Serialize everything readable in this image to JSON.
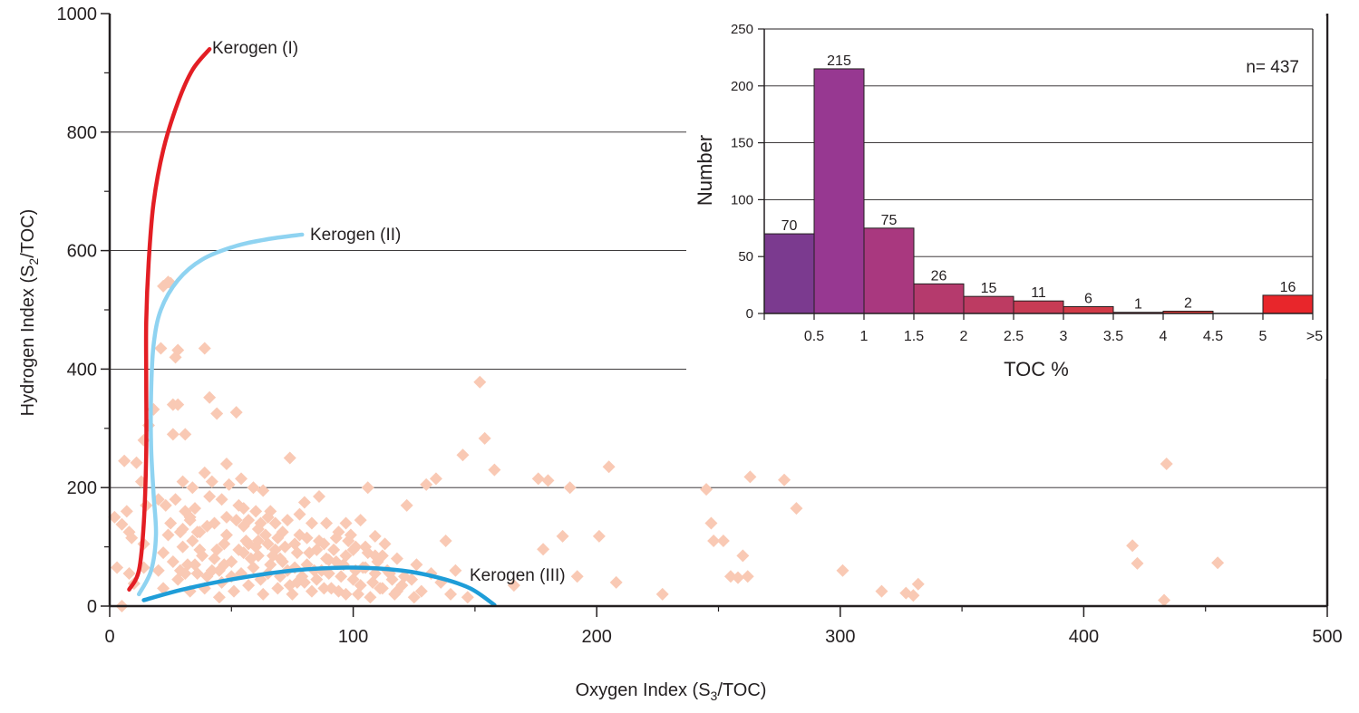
{
  "chart_data": [
    {
      "type": "scatter",
      "xlabel_main": "Oxygen Index (S",
      "xlabel_sub": "3",
      "xlabel_end": "/TOC)",
      "ylabel_main": "Hydrogen Index (S",
      "ylabel_sub": "2",
      "ylabel_end": "/TOC)",
      "xlim": [
        0,
        500
      ],
      "ylim": [
        0,
        1000
      ],
      "x_ticks": [
        "0",
        "100",
        "200",
        "300",
        "400",
        "500"
      ],
      "y_ticks": [
        "0",
        "200",
        "400",
        "600",
        "800",
        "1000"
      ],
      "grid": "horizontal",
      "point_color": "#f9c9b4",
      "curves": [
        {
          "label": "Kerogen (I)",
          "color": "#e31e24",
          "points": [
            [
              8,
              28
            ],
            [
              12,
              60
            ],
            [
              14,
              140
            ],
            [
              15,
              260
            ],
            [
              15,
              380
            ],
            [
              15,
              480
            ],
            [
              16,
              580
            ],
            [
              18,
              680
            ],
            [
              22,
              770
            ],
            [
              28,
              850
            ],
            [
              34,
              905
            ],
            [
              41,
              940
            ]
          ]
        },
        {
          "label": "Kerogen (II)",
          "color": "#8fd3f1",
          "points": [
            [
              12,
              20
            ],
            [
              17,
              60
            ],
            [
              19,
              120
            ],
            [
              18,
              190
            ],
            [
              17,
              270
            ],
            [
              17,
              360
            ],
            [
              18,
              440
            ],
            [
              21,
              500
            ],
            [
              28,
              550
            ],
            [
              38,
              585
            ],
            [
              52,
              608
            ],
            [
              66,
              620
            ],
            [
              79,
              627
            ]
          ]
        },
        {
          "label": "Kerogen (III)",
          "color": "#1e9dd8",
          "points": [
            [
              14,
              10
            ],
            [
              30,
              28
            ],
            [
              50,
              45
            ],
            [
              75,
              60
            ],
            [
              100,
              65
            ],
            [
              120,
              60
            ],
            [
              135,
              48
            ],
            [
              148,
              30
            ],
            [
              158,
              2
            ]
          ]
        }
      ],
      "points": [
        [
          2,
          150
        ],
        [
          3,
          65
        ],
        [
          5,
          0
        ],
        [
          5,
          138
        ],
        [
          6,
          245
        ],
        [
          7,
          160
        ],
        [
          8,
          125
        ],
        [
          9,
          115
        ],
        [
          8,
          55
        ],
        [
          10,
          38
        ],
        [
          11,
          242
        ],
        [
          13,
          210
        ],
        [
          15,
          170
        ],
        [
          14,
          105
        ],
        [
          14,
          65
        ],
        [
          14,
          280
        ],
        [
          16,
          305
        ],
        [
          18,
          332
        ],
        [
          20,
          180
        ],
        [
          21,
          435
        ],
        [
          22,
          540
        ],
        [
          24,
          547
        ],
        [
          25,
          545
        ],
        [
          27,
          420
        ],
        [
          28,
          432
        ],
        [
          28,
          340
        ],
        [
          26,
          340
        ],
        [
          26,
          290
        ],
        [
          31,
          290
        ],
        [
          31,
          160
        ],
        [
          30,
          210
        ],
        [
          33,
          145
        ],
        [
          34,
          200
        ],
        [
          36,
          125
        ],
        [
          39,
          225
        ],
        [
          39,
          435
        ],
        [
          41,
          352
        ],
        [
          42,
          210
        ],
        [
          44,
          325
        ],
        [
          46,
          180
        ],
        [
          48,
          240
        ],
        [
          48,
          150
        ],
        [
          52,
          327
        ],
        [
          54,
          215
        ],
        [
          55,
          165
        ],
        [
          57,
          105
        ],
        [
          59,
          200
        ],
        [
          61,
          130
        ],
        [
          63,
          195
        ],
        [
          66,
          160
        ],
        [
          68,
          95
        ],
        [
          71,
          75
        ],
        [
          74,
          250
        ],
        [
          76,
          105
        ],
        [
          78,
          155
        ],
        [
          80,
          175
        ],
        [
          83,
          140
        ],
        [
          86,
          185
        ],
        [
          88,
          105
        ],
        [
          90,
          78
        ],
        [
          94,
          125
        ],
        [
          97,
          140
        ],
        [
          100,
          95
        ],
        [
          103,
          145
        ],
        [
          106,
          200
        ],
        [
          109,
          118
        ],
        [
          112,
          85
        ],
        [
          115,
          55
        ],
        [
          118,
          25
        ],
        [
          122,
          170
        ],
        [
          126,
          70
        ],
        [
          130,
          205
        ],
        [
          134,
          215
        ],
        [
          138,
          110
        ],
        [
          142,
          60
        ],
        [
          145,
          255
        ],
        [
          147,
          15
        ],
        [
          152,
          378
        ],
        [
          154,
          283
        ],
        [
          158,
          230
        ],
        [
          166,
          35
        ],
        [
          176,
          215
        ],
        [
          178,
          96
        ],
        [
          180,
          212
        ],
        [
          186,
          118
        ],
        [
          189,
          200
        ],
        [
          192,
          50
        ],
        [
          201,
          118
        ],
        [
          205,
          235
        ],
        [
          208,
          40
        ],
        [
          227,
          20
        ],
        [
          245,
          197
        ],
        [
          247,
          140
        ],
        [
          248,
          110
        ],
        [
          252,
          110
        ],
        [
          255,
          50
        ],
        [
          258,
          48
        ],
        [
          260,
          85
        ],
        [
          262,
          50
        ],
        [
          263,
          218
        ],
        [
          277,
          213
        ],
        [
          282,
          165
        ],
        [
          301,
          60
        ],
        [
          317,
          25
        ],
        [
          327,
          22
        ],
        [
          330,
          18
        ],
        [
          332,
          37
        ],
        [
          420,
          102
        ],
        [
          422,
          72
        ],
        [
          433,
          10
        ],
        [
          434,
          240
        ],
        [
          455,
          73
        ],
        [
          20,
          60
        ],
        [
          22,
          90
        ],
        [
          24,
          120
        ],
        [
          26,
          75
        ],
        [
          28,
          45
        ],
        [
          30,
          100
        ],
        [
          32,
          70
        ],
        [
          34,
          110
        ],
        [
          36,
          55
        ],
        [
          38,
          85
        ],
        [
          40,
          135
        ],
        [
          42,
          60
        ],
        [
          44,
          95
        ],
        [
          46,
          40
        ],
        [
          48,
          120
        ],
        [
          50,
          75
        ],
        [
          52,
          145
        ],
        [
          54,
          55
        ],
        [
          56,
          110
        ],
        [
          58,
          80
        ],
        [
          60,
          160
        ],
        [
          62,
          45
        ],
        [
          64,
          120
        ],
        [
          66,
          70
        ],
        [
          68,
          140
        ],
        [
          70,
          50
        ],
        [
          72,
          100
        ],
        [
          74,
          35
        ],
        [
          76,
          65
        ],
        [
          78,
          120
        ],
        [
          80,
          40
        ],
        [
          82,
          90
        ],
        [
          84,
          60
        ],
        [
          86,
          110
        ],
        [
          88,
          30
        ],
        [
          90,
          55
        ],
        [
          92,
          95
        ],
        [
          94,
          25
        ],
        [
          96,
          70
        ],
        [
          98,
          110
        ],
        [
          100,
          45
        ],
        [
          102,
          20
        ],
        [
          104,
          65
        ],
        [
          106,
          90
        ],
        [
          108,
          40
        ],
        [
          110,
          75
        ],
        [
          112,
          30
        ],
        [
          114,
          60
        ],
        [
          116,
          45
        ],
        [
          118,
          80
        ],
        [
          120,
          35
        ],
        [
          124,
          45
        ],
        [
          128,
          25
        ],
        [
          132,
          55
        ],
        [
          136,
          40
        ],
        [
          140,
          20
        ],
        [
          25,
          140
        ],
        [
          27,
          180
        ],
        [
          29,
          125
        ],
        [
          31,
          55
        ],
        [
          33,
          25
        ],
        [
          35,
          165
        ],
        [
          37,
          95
        ],
        [
          39,
          30
        ],
        [
          41,
          185
        ],
        [
          43,
          140
        ],
        [
          45,
          15
        ],
        [
          47,
          70
        ],
        [
          49,
          205
        ],
        [
          51,
          25
        ],
        [
          53,
          95
        ],
        [
          55,
          135
        ],
        [
          57,
          35
        ],
        [
          59,
          65
        ],
        [
          61,
          110
        ],
        [
          63,
          20
        ],
        [
          65,
          150
        ],
        [
          67,
          85
        ],
        [
          69,
          30
        ],
        [
          71,
          125
        ],
        [
          73,
          60
        ],
        [
          75,
          20
        ],
        [
          77,
          90
        ],
        [
          79,
          50
        ],
        [
          81,
          70
        ],
        [
          83,
          25
        ],
        [
          85,
          95
        ],
        [
          87,
          60
        ],
        [
          89,
          140
        ],
        [
          91,
          30
        ],
        [
          93,
          75
        ],
        [
          95,
          50
        ],
        [
          97,
          20
        ],
        [
          99,
          120
        ],
        [
          101,
          60
        ],
        [
          103,
          35
        ],
        [
          105,
          100
        ],
        [
          107,
          15
        ],
        [
          109,
          55
        ],
        [
          111,
          30
        ],
        [
          113,
          105
        ],
        [
          117,
          20
        ],
        [
          121,
          50
        ],
        [
          125,
          15
        ],
        [
          22,
          30
        ],
        [
          23,
          170
        ],
        [
          29,
          60
        ],
        [
          33,
          150
        ],
        [
          37,
          125
        ],
        [
          43,
          80
        ],
        [
          47,
          105
        ],
        [
          53,
          170
        ],
        [
          57,
          145
        ],
        [
          61,
          85
        ],
        [
          65,
          55
        ],
        [
          69,
          115
        ],
        [
          73,
          145
        ],
        [
          77,
          40
        ],
        [
          81,
          115
        ],
        [
          85,
          45
        ],
        [
          89,
          80
        ],
        [
          93,
          115
        ],
        [
          97,
          85
        ],
        [
          101,
          100
        ],
        [
          105,
          65
        ],
        [
          109,
          85
        ],
        [
          45,
          60
        ],
        [
          50,
          50
        ],
        [
          55,
          90
        ],
        [
          60,
          100
        ],
        [
          65,
          105
        ],
        [
          70,
          80
        ],
        [
          35,
          70
        ],
        [
          40,
          50
        ],
        [
          30,
          130
        ],
        [
          62,
          140
        ]
      ]
    },
    {
      "type": "bar",
      "title": "",
      "xlabel": "TOC %",
      "ylabel": "Number",
      "annotation": "n= 437",
      "ylim": [
        0,
        250
      ],
      "y_ticks": [
        "0",
        "50",
        "100",
        "150",
        "200",
        "250"
      ],
      "x_tick_labels": [
        "0.5",
        "1",
        "1.5",
        "2",
        "2.5",
        "3",
        "3.5",
        "4",
        "4.5",
        "5",
        ">5"
      ],
      "categories": [
        "0-0.5",
        "0.5-1",
        "1-1.5",
        "1.5-2",
        "2-2.5",
        "2.5-3",
        "3-3.5",
        "3.5-4",
        "4-4.5",
        "4.5-5",
        ">5"
      ],
      "values": [
        70,
        215,
        75,
        26,
        15,
        11,
        6,
        1,
        2,
        0,
        16
      ],
      "value_labels": [
        "70",
        "215",
        "75",
        "26",
        "15",
        "11",
        "6",
        "1",
        "2",
        "",
        "16"
      ],
      "colors": [
        "#7b3a8f",
        "#973891",
        "#a9387f",
        "#b53a6d",
        "#bd3b62",
        "#c73b54",
        "#d13a47",
        "#d83a3d",
        "#dc3a38",
        "#e03b31",
        "#e8262b"
      ],
      "grid": "horizontal"
    }
  ]
}
